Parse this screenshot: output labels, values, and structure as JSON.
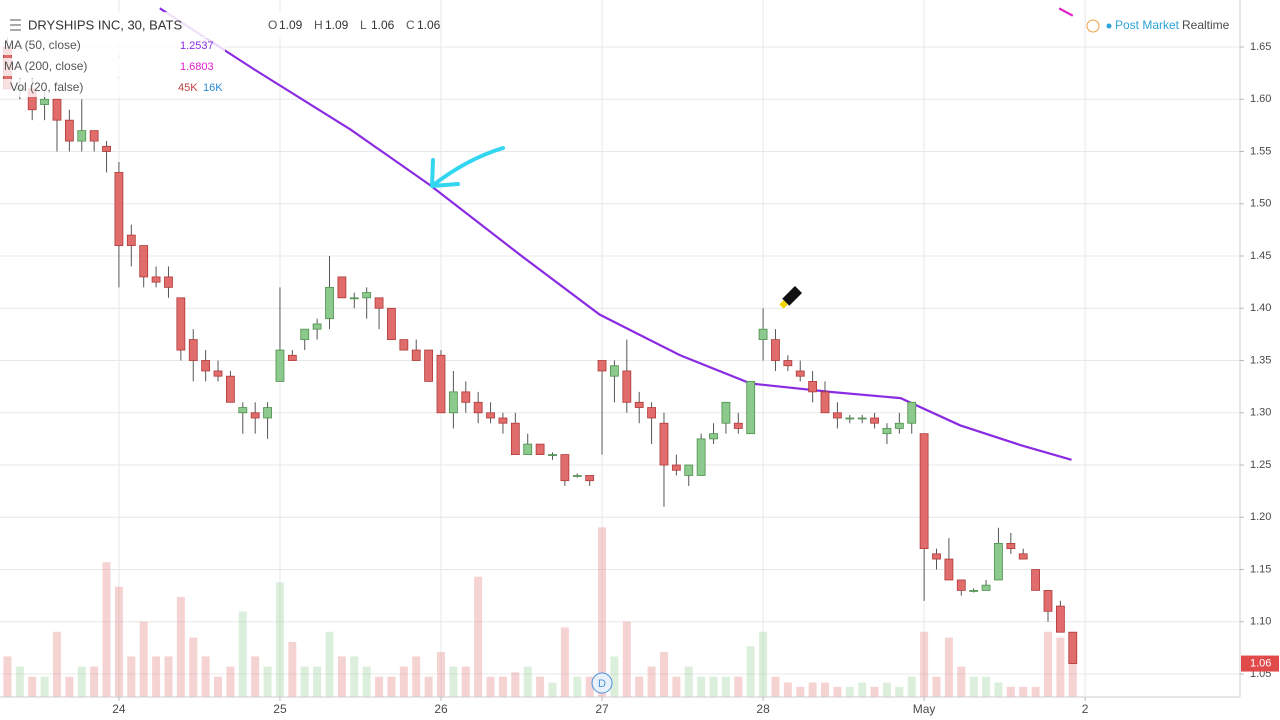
{
  "chart_data": {
    "type": "candlestick",
    "title": "DRYSHIPS INC, 30, BATS",
    "ohlc_header": [
      {
        "label": "O",
        "value": 1.09
      },
      {
        "label": "H",
        "value": 1.09
      },
      {
        "label": "L",
        "value": 1.06
      },
      {
        "label": "C",
        "value": 1.06
      }
    ],
    "status": [
      "Post Market",
      "Realtime"
    ],
    "xlim": [
      -0.6,
      99.5
    ],
    "ylim": [
      1.028,
      1.695
    ],
    "xticks": [
      {
        "value": 9,
        "label": "24"
      },
      {
        "value": 22,
        "label": "25"
      },
      {
        "value": 35,
        "label": "26"
      },
      {
        "value": 48,
        "label": "27"
      },
      {
        "value": 61,
        "label": "28"
      },
      {
        "value": 74,
        "label": "May"
      },
      {
        "value": 87,
        "label": "2"
      }
    ],
    "yticks": [
      1.05,
      {
        "value": 1.1,
        "label": "1.10"
      },
      1.15,
      {
        "value": 1.2,
        "label": "1.20"
      },
      1.25,
      {
        "value": 1.3,
        "label": "1.30"
      },
      1.35,
      {
        "value": 1.4,
        "label": "1.40"
      },
      1.45,
      {
        "value": 1.5,
        "label": "1.50"
      },
      1.55,
      {
        "value": 1.6,
        "label": "1.60"
      },
      1.65
    ],
    "grid": true,
    "up_color": "#8cc98c",
    "down_color": "#e06c6c",
    "last_price": 1.06,
    "candles": [
      {
        "o": 1.65,
        "h": 1.66,
        "l": 1.61,
        "c": 1.61
      },
      {
        "o": 1.61,
        "h": 1.62,
        "l": 1.6,
        "c": 1.61
      },
      {
        "o": 1.61,
        "h": 1.62,
        "l": 1.58,
        "c": 1.59
      },
      {
        "o": 1.595,
        "h": 1.61,
        "l": 1.58,
        "c": 1.6
      },
      {
        "o": 1.6,
        "h": 1.6,
        "l": 1.55,
        "c": 1.58
      },
      {
        "o": 1.58,
        "h": 1.59,
        "l": 1.55,
        "c": 1.56
      },
      {
        "o": 1.56,
        "h": 1.6,
        "l": 1.55,
        "c": 1.57
      },
      {
        "o": 1.57,
        "h": 1.57,
        "l": 1.55,
        "c": 1.56
      },
      {
        "o": 1.555,
        "h": 1.56,
        "l": 1.53,
        "c": 1.55
      },
      {
        "o": 1.53,
        "h": 1.54,
        "l": 1.42,
        "c": 1.46
      },
      {
        "o": 1.47,
        "h": 1.48,
        "l": 1.44,
        "c": 1.46
      },
      {
        "o": 1.46,
        "h": 1.46,
        "l": 1.42,
        "c": 1.43
      },
      {
        "o": 1.43,
        "h": 1.44,
        "l": 1.42,
        "c": 1.425
      },
      {
        "o": 1.43,
        "h": 1.44,
        "l": 1.41,
        "c": 1.42
      },
      {
        "o": 1.41,
        "h": 1.41,
        "l": 1.35,
        "c": 1.36
      },
      {
        "o": 1.37,
        "h": 1.38,
        "l": 1.33,
        "c": 1.35
      },
      {
        "o": 1.35,
        "h": 1.36,
        "l": 1.33,
        "c": 1.34
      },
      {
        "o": 1.34,
        "h": 1.35,
        "l": 1.33,
        "c": 1.335
      },
      {
        "o": 1.335,
        "h": 1.34,
        "l": 1.31,
        "c": 1.31
      },
      {
        "o": 1.3,
        "h": 1.31,
        "l": 1.28,
        "c": 1.305
      },
      {
        "o": 1.3,
        "h": 1.31,
        "l": 1.28,
        "c": 1.295
      },
      {
        "o": 1.295,
        "h": 1.31,
        "l": 1.275,
        "c": 1.305
      },
      {
        "o": 1.33,
        "h": 1.42,
        "l": 1.33,
        "c": 1.36
      },
      {
        "o": 1.355,
        "h": 1.36,
        "l": 1.35,
        "c": 1.35
      },
      {
        "o": 1.37,
        "h": 1.38,
        "l": 1.36,
        "c": 1.38
      },
      {
        "o": 1.38,
        "h": 1.39,
        "l": 1.37,
        "c": 1.385
      },
      {
        "o": 1.39,
        "h": 1.45,
        "l": 1.38,
        "c": 1.42
      },
      {
        "o": 1.43,
        "h": 1.43,
        "l": 1.41,
        "c": 1.41
      },
      {
        "o": 1.41,
        "h": 1.415,
        "l": 1.4,
        "c": 1.41
      },
      {
        "o": 1.41,
        "h": 1.42,
        "l": 1.39,
        "c": 1.415
      },
      {
        "o": 1.41,
        "h": 1.41,
        "l": 1.38,
        "c": 1.4
      },
      {
        "o": 1.4,
        "h": 1.4,
        "l": 1.37,
        "c": 1.37
      },
      {
        "o": 1.37,
        "h": 1.37,
        "l": 1.36,
        "c": 1.36
      },
      {
        "o": 1.36,
        "h": 1.37,
        "l": 1.35,
        "c": 1.35
      },
      {
        "o": 1.36,
        "h": 1.36,
        "l": 1.33,
        "c": 1.33
      },
      {
        "o": 1.355,
        "h": 1.36,
        "l": 1.3,
        "c": 1.3
      },
      {
        "o": 1.3,
        "h": 1.34,
        "l": 1.285,
        "c": 1.32
      },
      {
        "o": 1.32,
        "h": 1.33,
        "l": 1.3,
        "c": 1.31
      },
      {
        "o": 1.31,
        "h": 1.32,
        "l": 1.29,
        "c": 1.3
      },
      {
        "o": 1.3,
        "h": 1.31,
        "l": 1.29,
        "c": 1.295
      },
      {
        "o": 1.295,
        "h": 1.3,
        "l": 1.28,
        "c": 1.29
      },
      {
        "o": 1.29,
        "h": 1.3,
        "l": 1.26,
        "c": 1.26
      },
      {
        "o": 1.26,
        "h": 1.28,
        "l": 1.26,
        "c": 1.27
      },
      {
        "o": 1.27,
        "h": 1.27,
        "l": 1.26,
        "c": 1.26
      },
      {
        "o": 1.26,
        "h": 1.262,
        "l": 1.255,
        "c": 1.26
      },
      {
        "o": 1.26,
        "h": 1.26,
        "l": 1.23,
        "c": 1.235
      },
      {
        "o": 1.24,
        "h": 1.242,
        "l": 1.238,
        "c": 1.24
      },
      {
        "o": 1.24,
        "h": 1.24,
        "l": 1.23,
        "c": 1.235
      },
      {
        "o": 1.35,
        "h": 1.35,
        "l": 1.26,
        "c": 1.34
      },
      {
        "o": 1.335,
        "h": 1.35,
        "l": 1.31,
        "c": 1.345
      },
      {
        "o": 1.34,
        "h": 1.37,
        "l": 1.3,
        "c": 1.31
      },
      {
        "o": 1.31,
        "h": 1.32,
        "l": 1.29,
        "c": 1.305
      },
      {
        "o": 1.305,
        "h": 1.31,
        "l": 1.27,
        "c": 1.295
      },
      {
        "o": 1.29,
        "h": 1.3,
        "l": 1.21,
        "c": 1.25
      },
      {
        "o": 1.25,
        "h": 1.26,
        "l": 1.24,
        "c": 1.245
      },
      {
        "o": 1.24,
        "h": 1.25,
        "l": 1.23,
        "c": 1.25
      },
      {
        "o": 1.24,
        "h": 1.28,
        "l": 1.24,
        "c": 1.275
      },
      {
        "o": 1.275,
        "h": 1.29,
        "l": 1.27,
        "c": 1.28
      },
      {
        "o": 1.29,
        "h": 1.31,
        "l": 1.28,
        "c": 1.31
      },
      {
        "o": 1.29,
        "h": 1.3,
        "l": 1.28,
        "c": 1.285
      },
      {
        "o": 1.28,
        "h": 1.33,
        "l": 1.28,
        "c": 1.33
      },
      {
        "o": 1.37,
        "h": 1.4,
        "l": 1.35,
        "c": 1.38
      },
      {
        "o": 1.37,
        "h": 1.38,
        "l": 1.34,
        "c": 1.35
      },
      {
        "o": 1.35,
        "h": 1.355,
        "l": 1.34,
        "c": 1.345
      },
      {
        "o": 1.34,
        "h": 1.35,
        "l": 1.33,
        "c": 1.335
      },
      {
        "o": 1.33,
        "h": 1.34,
        "l": 1.31,
        "c": 1.32
      },
      {
        "o": 1.32,
        "h": 1.33,
        "l": 1.3,
        "c": 1.3
      },
      {
        "o": 1.3,
        "h": 1.31,
        "l": 1.285,
        "c": 1.295
      },
      {
        "o": 1.295,
        "h": 1.298,
        "l": 1.29,
        "c": 1.295
      },
      {
        "o": 1.295,
        "h": 1.298,
        "l": 1.29,
        "c": 1.295
      },
      {
        "o": 1.295,
        "h": 1.3,
        "l": 1.285,
        "c": 1.29
      },
      {
        "o": 1.28,
        "h": 1.29,
        "l": 1.27,
        "c": 1.285
      },
      {
        "o": 1.285,
        "h": 1.3,
        "l": 1.28,
        "c": 1.29
      },
      {
        "o": 1.29,
        "h": 1.31,
        "l": 1.28,
        "c": 1.31
      },
      {
        "o": 1.28,
        "h": 1.28,
        "l": 1.12,
        "c": 1.17
      },
      {
        "o": 1.165,
        "h": 1.17,
        "l": 1.15,
        "c": 1.16
      },
      {
        "o": 1.16,
        "h": 1.18,
        "l": 1.14,
        "c": 1.14
      },
      {
        "o": 1.14,
        "h": 1.14,
        "l": 1.125,
        "c": 1.13
      },
      {
        "o": 1.13,
        "h": 1.132,
        "l": 1.128,
        "c": 1.13
      },
      {
        "o": 1.13,
        "h": 1.14,
        "l": 1.13,
        "c": 1.135
      },
      {
        "o": 1.14,
        "h": 1.19,
        "l": 1.14,
        "c": 1.175
      },
      {
        "o": 1.175,
        "h": 1.185,
        "l": 1.165,
        "c": 1.17
      },
      {
        "o": 1.165,
        "h": 1.17,
        "l": 1.16,
        "c": 1.16
      },
      {
        "o": 1.15,
        "h": 1.15,
        "l": 1.13,
        "c": 1.13
      },
      {
        "o": 1.13,
        "h": 1.13,
        "l": 1.1,
        "c": 1.11
      },
      {
        "o": 1.115,
        "h": 1.12,
        "l": 1.09,
        "c": 1.09
      },
      {
        "o": 1.09,
        "h": 1.09,
        "l": 1.06,
        "c": 1.06
      }
    ],
    "moving_averages": [
      {
        "name": "MA (50, close)",
        "color": "#8a2be2",
        "last": 1.2537,
        "x": [
          12.3,
          20,
          27.7,
          34.1,
          41.4,
          47.8,
          54.3,
          60,
          66.4,
          72.1,
          76.9,
          81.8,
          85.9
        ],
        "values": [
          1.687,
          1.628,
          1.571,
          1.518,
          1.451,
          1.394,
          1.355,
          1.328,
          1.32,
          1.314,
          1.288,
          1.269,
          1.255
        ]
      },
      {
        "name": "MA (200, close)",
        "color": "#e020c8",
        "last": 1.6803,
        "x": [
          84.9,
          86
        ],
        "values": [
          1.687,
          1.68
        ]
      }
    ],
    "volume": {
      "name": "Vol (20, false)",
      "last": {
        "value": 45,
        "label": "45K"
      },
      "average": {
        "value": 16,
        "label": "16K"
      },
      "values": [
        28,
        21,
        14,
        14,
        45,
        14,
        21,
        21,
        93,
        76,
        28,
        52,
        28,
        28,
        69,
        41,
        28,
        14,
        21,
        59,
        28,
        21,
        79,
        38,
        21,
        21,
        45,
        28,
        28,
        21,
        14,
        14,
        21,
        28,
        14,
        31,
        21,
        21,
        83,
        14,
        14,
        17,
        21,
        14,
        10,
        48,
        14,
        14,
        117,
        28,
        52,
        14,
        21,
        31,
        14,
        21,
        14,
        14,
        14,
        14,
        35,
        45,
        14,
        10,
        7,
        10,
        10,
        7,
        7,
        10,
        7,
        10,
        7,
        14,
        45,
        14,
        41,
        21,
        14,
        14,
        10,
        7,
        7,
        7,
        45,
        41,
        45
      ]
    },
    "marker": {
      "x": 48,
      "label": "D"
    }
  }
}
